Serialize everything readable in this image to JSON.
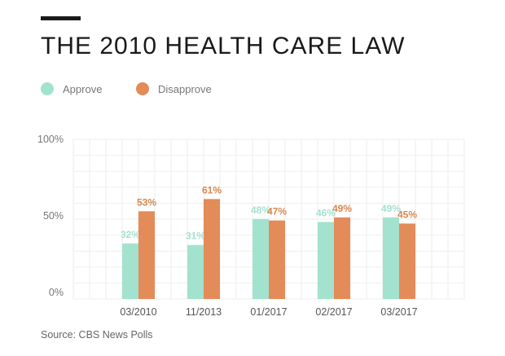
{
  "header": {
    "title": "THE 2010 HEALTH CARE LAW"
  },
  "legend": [
    {
      "label": "Approve",
      "color": "#a3e2ce"
    },
    {
      "label": "Disapprove",
      "color": "#e38b59"
    }
  ],
  "source": "Source: CBS News Polls",
  "chart_data": {
    "type": "bar",
    "title": "THE 2010 HEALTH CARE LAW",
    "categories": [
      "03/2010",
      "11/2013",
      "01/2017",
      "02/2017",
      "03/2017"
    ],
    "series": [
      {
        "name": "Approve",
        "color": "#a3e2ce",
        "label_color": "#a3e2ce",
        "values": [
          32,
          31,
          48,
          46,
          49
        ],
        "labels": [
          "32%",
          "31%",
          "48%",
          "46%",
          "49%"
        ]
      },
      {
        "name": "Disapprove",
        "color": "#e38b59",
        "label_color": "#d9874f",
        "values": [
          53,
          61,
          47,
          49,
          45
        ],
        "labels": [
          "53%",
          "61%",
          "47%",
          "49%",
          "45%"
        ]
      }
    ],
    "yticks": [
      {
        "value": 0,
        "label": "0%"
      },
      {
        "value": 50,
        "label": "50%"
      },
      {
        "value": 100,
        "label": "100%"
      }
    ],
    "ylim": [
      0,
      100
    ],
    "xlabel": "",
    "ylabel": "",
    "grid": true,
    "legend_position": "top-left"
  }
}
